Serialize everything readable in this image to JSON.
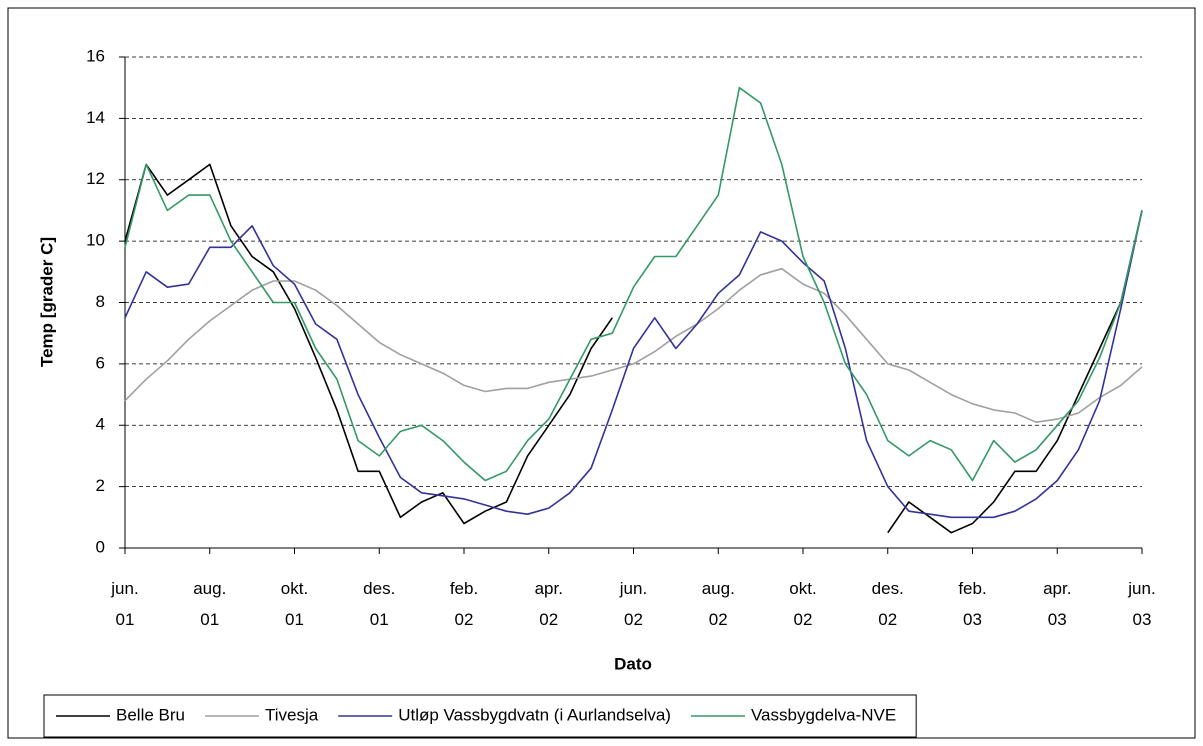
{
  "chart_data": {
    "type": "line",
    "x_label": "Dato",
    "y_label": "Temp [grader C]",
    "x": [
      0,
      0.5,
      1,
      1.5,
      2,
      2.5,
      3,
      3.5,
      4,
      4.5,
      5,
      5.5,
      6,
      6.5,
      7,
      7.5,
      8,
      8.5,
      9,
      9.5,
      10,
      10.5,
      11,
      11.5,
      12,
      12.5,
      13,
      13.5,
      14,
      14.5,
      15,
      15.5,
      16,
      16.5,
      17,
      17.5,
      18,
      18.5,
      19,
      19.5,
      20,
      20.5,
      21,
      21.5,
      22,
      22.5,
      23,
      23.5,
      24
    ],
    "xlim": [
      0,
      24
    ],
    "xticks": [
      {
        "value": 0,
        "label": "jun. 01"
      },
      {
        "value": 2,
        "label": "aug. 01"
      },
      {
        "value": 4,
        "label": "okt. 01"
      },
      {
        "value": 6,
        "label": "des. 01"
      },
      {
        "value": 8,
        "label": "feb. 02"
      },
      {
        "value": 10,
        "label": "apr. 02"
      },
      {
        "value": 12,
        "label": "jun. 02"
      },
      {
        "value": 14,
        "label": "aug. 02"
      },
      {
        "value": 16,
        "label": "okt. 02"
      },
      {
        "value": 18,
        "label": "des. 02"
      },
      {
        "value": 20,
        "label": "feb. 03"
      },
      {
        "value": 22,
        "label": "apr. 03"
      },
      {
        "value": 24,
        "label": "jun. 03"
      }
    ],
    "ylim": [
      0,
      16
    ],
    "yticks": [
      0,
      2,
      4,
      6,
      8,
      10,
      12,
      14,
      16
    ],
    "grid": true,
    "legend": "bottom",
    "series": [
      {
        "name": "Belle Bru",
        "color": "#000000",
        "values": [
          10.0,
          12.5,
          11.5,
          12.0,
          12.5,
          10.5,
          9.5,
          9.0,
          7.8,
          6.2,
          4.5,
          2.5,
          2.5,
          1.0,
          1.5,
          1.8,
          0.8,
          1.2,
          1.5,
          3.0,
          4.0,
          5.0,
          6.5,
          7.5,
          null,
          null,
          null,
          null,
          null,
          null,
          null,
          null,
          null,
          null,
          null,
          null,
          0.5,
          1.5,
          1.0,
          0.5,
          0.8,
          1.5,
          2.5,
          2.5,
          3.5,
          5.0,
          6.5,
          8.0,
          11.0
        ]
      },
      {
        "name": "Tivesja",
        "color": "#a0a0a0",
        "values": [
          4.8,
          5.5,
          6.1,
          6.8,
          7.4,
          7.9,
          8.4,
          8.7,
          8.7,
          8.4,
          7.9,
          7.3,
          6.7,
          6.3,
          6.0,
          5.7,
          5.3,
          5.1,
          5.2,
          5.2,
          5.4,
          5.5,
          5.6,
          5.8,
          6.0,
          6.4,
          6.9,
          7.3,
          7.8,
          8.4,
          8.9,
          9.1,
          8.6,
          8.3,
          7.6,
          6.8,
          6.0,
          5.8,
          5.4,
          5.0,
          4.7,
          4.5,
          4.4,
          4.1,
          4.2,
          4.4,
          4.9,
          5.3,
          5.9
        ]
      },
      {
        "name": "Utløp Vassbygdvatn (i Aurlandselva)",
        "color": "#333399",
        "values": [
          7.5,
          9.0,
          8.5,
          8.6,
          9.8,
          9.8,
          10.5,
          9.2,
          8.6,
          7.3,
          6.8,
          5.0,
          3.6,
          2.3,
          1.8,
          1.7,
          1.6,
          1.4,
          1.2,
          1.1,
          1.3,
          1.8,
          2.6,
          4.5,
          6.5,
          7.5,
          6.5,
          7.3,
          8.3,
          8.9,
          10.3,
          10.0,
          9.3,
          8.7,
          6.5,
          3.5,
          2.0,
          1.2,
          1.1,
          1.0,
          1.0,
          1.0,
          1.2,
          1.6,
          2.2,
          3.2,
          4.8,
          7.8,
          11.0
        ]
      },
      {
        "name": "Vassbygdelva-NVE",
        "color": "#339966",
        "values": [
          9.8,
          12.5,
          11.0,
          11.5,
          11.5,
          10.0,
          9.0,
          8.0,
          8.0,
          6.5,
          5.5,
          3.5,
          3.0,
          3.8,
          4.0,
          3.5,
          2.8,
          2.2,
          2.5,
          3.5,
          4.2,
          5.5,
          6.8,
          7.0,
          8.5,
          9.5,
          9.5,
          10.5,
          11.5,
          15.0,
          14.5,
          12.5,
          9.5,
          8.0,
          6.0,
          5.0,
          3.5,
          3.0,
          3.5,
          3.2,
          2.2,
          3.5,
          2.8,
          3.2,
          4.0,
          4.8,
          6.2,
          8.0,
          11.0
        ]
      }
    ]
  }
}
